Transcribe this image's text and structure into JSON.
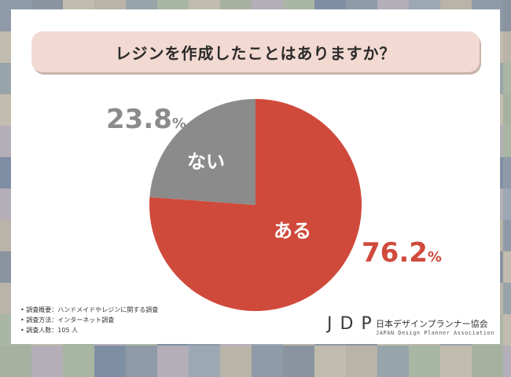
{
  "title": "レジンを作成したことはありますか？",
  "chart_data": {
    "type": "pie",
    "slices": [
      {
        "label": "ある",
        "value": 76.2,
        "color": "#d04a3c"
      },
      {
        "label": "ない",
        "value": 23.8,
        "color": "#8b8b8b"
      }
    ],
    "value_suffix": "%",
    "start": "12 o'clock",
    "direction": "clockwise"
  },
  "labels": {
    "yes_value": "76.2",
    "no_value": "23.8",
    "percent": "%"
  },
  "notes": [
    "調査概要：ハンドメイドやレジンに関する調査",
    "調査方法：インターネット調査",
    "調査人数：105 人"
  ],
  "logo": {
    "mark": "JDP",
    "org_jp": "日本デザインプランナー協会",
    "org_en": "JAPAN Design Planner Association"
  }
}
